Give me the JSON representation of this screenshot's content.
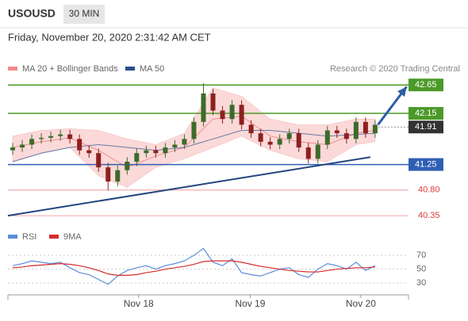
{
  "header": {
    "symbol": "USOUSD",
    "timeframe": "30 MIN",
    "datetime": "Friday, November 20, 2020 2:31:42 AM CET",
    "credit": "Research © 2020 Trading Central"
  },
  "chart_data": [
    {
      "type": "candlestick",
      "xlim": [
        -0.5,
        41.5
      ],
      "ylim": [
        40.17,
        42.82
      ],
      "candles": {
        "up_color": "#3d6b2a",
        "down_color": "#8e2020",
        "x": [
          0,
          1,
          2,
          3,
          4,
          5,
          6,
          7,
          8,
          9,
          10,
          11,
          12,
          13,
          14,
          15,
          16,
          17,
          18,
          19,
          20,
          21,
          22,
          23,
          24,
          25,
          26,
          27,
          28,
          29,
          30,
          31,
          32,
          33,
          34,
          35,
          36,
          37,
          38
        ],
        "open": [
          41.5,
          41.55,
          41.6,
          41.7,
          41.72,
          41.75,
          41.78,
          41.7,
          41.5,
          41.45,
          41.2,
          40.95,
          41.15,
          41.3,
          41.45,
          41.5,
          41.45,
          41.55,
          41.6,
          41.7,
          42.0,
          42.5,
          42.2,
          42.05,
          42.3,
          41.95,
          41.8,
          41.65,
          41.6,
          41.7,
          41.8,
          41.55,
          41.35,
          41.6,
          41.85,
          41.8,
          41.7,
          42.0,
          41.8
        ],
        "high": [
          41.63,
          41.68,
          41.78,
          41.8,
          41.83,
          41.86,
          41.86,
          41.78,
          41.58,
          41.53,
          41.28,
          41.23,
          41.38,
          41.53,
          41.58,
          41.58,
          41.63,
          41.68,
          41.78,
          42.08,
          42.68,
          42.58,
          42.28,
          42.38,
          42.38,
          42.03,
          41.88,
          41.73,
          41.78,
          41.88,
          41.88,
          41.63,
          41.68,
          41.93,
          41.93,
          41.88,
          42.08,
          42.08,
          42.03
        ],
        "low": [
          41.42,
          41.47,
          41.52,
          41.62,
          41.64,
          41.67,
          41.62,
          41.42,
          41.37,
          41.12,
          40.8,
          40.87,
          41.07,
          41.22,
          41.37,
          41.37,
          41.37,
          41.47,
          41.52,
          41.62,
          41.92,
          42.12,
          41.97,
          41.97,
          41.87,
          41.72,
          41.57,
          41.52,
          41.52,
          41.62,
          41.47,
          41.27,
          41.27,
          41.52,
          41.72,
          41.62,
          41.62,
          41.72,
          41.72
        ],
        "close": [
          41.55,
          41.6,
          41.7,
          41.72,
          41.75,
          41.78,
          41.7,
          41.5,
          41.45,
          41.2,
          40.95,
          41.15,
          41.3,
          41.45,
          41.5,
          41.45,
          41.55,
          41.6,
          41.7,
          42.0,
          42.5,
          42.2,
          42.05,
          42.3,
          41.95,
          41.8,
          41.65,
          41.6,
          41.7,
          41.8,
          41.55,
          41.35,
          41.6,
          41.85,
          41.8,
          41.7,
          42.0,
          41.8,
          41.95
        ]
      },
      "series": [
        {
          "name": "MA 20 + Bollinger Bands",
          "color": "#f28b8b",
          "fill": "#fbd9d9",
          "x": [
            0,
            3,
            6,
            9,
            12,
            15,
            18,
            21,
            24,
            27,
            30,
            33,
            36,
            38
          ],
          "values": [
            41.55,
            41.65,
            41.72,
            41.5,
            41.2,
            41.4,
            41.55,
            42.05,
            42.1,
            41.75,
            41.65,
            41.6,
            41.8,
            41.85
          ],
          "upper": [
            41.75,
            41.85,
            41.88,
            41.85,
            41.7,
            41.6,
            41.8,
            42.6,
            42.45,
            42.05,
            41.95,
            41.95,
            42.05,
            42.05
          ],
          "lower": [
            41.3,
            41.45,
            41.55,
            41.05,
            40.85,
            41.2,
            41.35,
            41.55,
            41.75,
            41.5,
            41.35,
            41.3,
            41.6,
            41.65
          ]
        },
        {
          "name": "MA 50",
          "color": "#2c4f8c",
          "x": [
            0,
            3,
            6,
            9,
            12,
            15,
            18,
            21,
            24,
            27,
            30,
            33,
            36,
            38
          ],
          "values": [
            41.3,
            41.45,
            41.55,
            41.6,
            41.55,
            41.5,
            41.55,
            41.7,
            41.85,
            41.85,
            41.8,
            41.75,
            41.78,
            41.8
          ]
        }
      ],
      "levels": [
        {
          "value": 42.65,
          "color": "#4c9a2a",
          "style": "box"
        },
        {
          "value": 42.15,
          "color": "#4c9a2a",
          "style": "box"
        },
        {
          "value": 41.91,
          "color": "#333333",
          "style": "current"
        },
        {
          "value": 41.25,
          "color": "#2f5fb3",
          "style": "box"
        },
        {
          "value": 40.8,
          "label": "40.80",
          "color": "#e03a3a",
          "style": "text"
        },
        {
          "value": 40.35,
          "color": "#e03a3a",
          "style": "text"
        }
      ],
      "trendline": {
        "color": "#24457e",
        "x": [
          -0.5,
          37.5
        ],
        "y": [
          40.35,
          41.38
        ]
      },
      "arrow": {
        "color": "#2a5ea8",
        "x": [
          38.3,
          41.3
        ],
        "y": [
          41.95,
          42.62
        ]
      }
    },
    {
      "type": "line",
      "xlim": [
        -0.5,
        41.5
      ],
      "ylim": [
        15,
        84
      ],
      "yticks": [
        30,
        50,
        70
      ],
      "xticks": [
        {
          "value": 13.2,
          "label": "Nov 18"
        },
        {
          "value": 24.9,
          "label": "Nov 19"
        },
        {
          "value": 36.5,
          "label": "Nov 20"
        }
      ],
      "series": [
        {
          "name": "RSI",
          "color": "#5b8dd9",
          "x": [
            0,
            1,
            2,
            3,
            4,
            5,
            6,
            7,
            8,
            9,
            10,
            11,
            12,
            13,
            14,
            15,
            16,
            17,
            18,
            19,
            20,
            21,
            22,
            23,
            24,
            25,
            26,
            27,
            28,
            29,
            30,
            31,
            32,
            33,
            34,
            35,
            36,
            37,
            38
          ],
          "values": [
            55,
            58,
            62,
            60,
            58,
            60,
            52,
            45,
            42,
            35,
            28,
            40,
            48,
            52,
            55,
            50,
            55,
            58,
            62,
            70,
            80,
            60,
            55,
            65,
            45,
            42,
            40,
            45,
            50,
            52,
            42,
            38,
            50,
            58,
            55,
            50,
            60,
            48,
            55
          ]
        },
        {
          "name": "9MA",
          "color": "#d62b2b",
          "x": [
            0,
            1,
            2,
            3,
            4,
            5,
            6,
            7,
            8,
            9,
            10,
            11,
            12,
            13,
            14,
            15,
            16,
            17,
            18,
            19,
            20,
            21,
            22,
            23,
            24,
            25,
            26,
            27,
            28,
            29,
            30,
            31,
            32,
            33,
            34,
            35,
            36,
            37,
            38
          ],
          "values": [
            52,
            53,
            55,
            56,
            57,
            58,
            57,
            55,
            52,
            48,
            43,
            41,
            41,
            42,
            45,
            47,
            50,
            52,
            54,
            57,
            61,
            62,
            62,
            62,
            60,
            57,
            54,
            52,
            50,
            48,
            47,
            46,
            46,
            48,
            50,
            51,
            52,
            52,
            53
          ]
        }
      ]
    }
  ]
}
